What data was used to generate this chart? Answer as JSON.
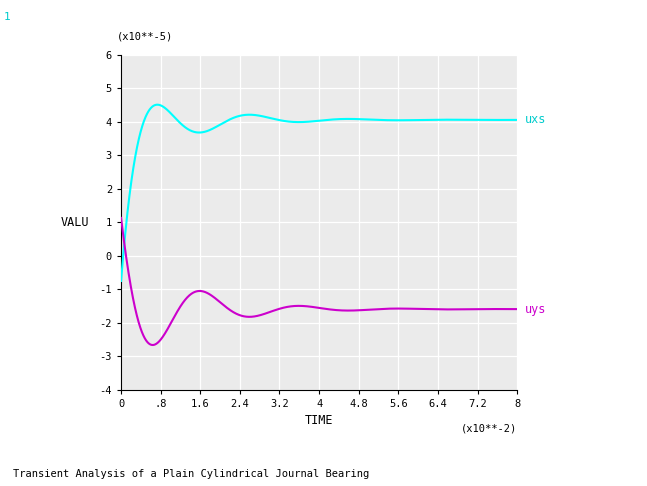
{
  "title": "Transient Analysis of a Plain Cylindrical Journal Bearing",
  "xlabel": "TIME",
  "ylabel": "VALU",
  "x_unit": "(x10**-2)",
  "y_unit": "(x10**-5)",
  "xlim": [
    0,
    8
  ],
  "ylim": [
    -4,
    6
  ],
  "xticks": [
    0,
    0.8,
    1.6,
    2.4,
    3.2,
    4.0,
    4.8,
    5.6,
    6.4,
    7.2,
    8.0
  ],
  "xtick_labels": [
    "0",
    ".8",
    "1.6",
    "2.4",
    "3.2",
    "4",
    "4.8",
    "5.6",
    "6.4",
    "7.2",
    "8"
  ],
  "yticks": [
    -4,
    -3,
    -2,
    -1,
    0,
    1,
    2,
    3,
    4,
    5,
    6
  ],
  "ytick_labels": [
    "-4",
    "-3",
    "-2",
    "-1",
    "0",
    "1",
    "2",
    "3",
    "4",
    "5",
    "6"
  ],
  "line_uxs_color": "#00FFFF",
  "line_uys_color": "#CC00CC",
  "label_uxs": "uxs",
  "label_uys": "uys",
  "bg_color": "#FFFFFF",
  "plot_bg_color": "#EBEBEB",
  "grid_color": "#FFFFFF",
  "label_color_uxs": "#00CCCC",
  "label_color_uys": "#CC00CC",
  "corner_label": "1",
  "corner_label_color": "#00CCCC"
}
